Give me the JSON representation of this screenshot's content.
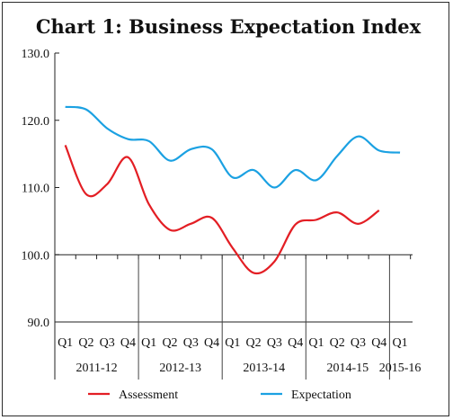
{
  "chart_data": {
    "type": "line",
    "title": "Chart 1: Business Expectation Index",
    "xlabel": "",
    "ylabel": "",
    "ylim": [
      90,
      130
    ],
    "yticks": [
      "130.0",
      "120.0",
      "110.0",
      "100.0",
      "90.0"
    ],
    "ytick_values": [
      130,
      120,
      110,
      100,
      90
    ],
    "grid": false,
    "legend_position": "bottom",
    "categories": [
      "Q1",
      "Q2",
      "Q3",
      "Q4",
      "Q1",
      "Q2",
      "Q3",
      "Q4",
      "Q1",
      "Q2",
      "Q3",
      "Q4",
      "Q1",
      "Q2",
      "Q3",
      "Q4",
      "Q1"
    ],
    "year_groups": [
      {
        "label": "2011-12",
        "count": 4
      },
      {
        "label": "2012-13",
        "count": 4
      },
      {
        "label": "2013-14",
        "count": 4
      },
      {
        "label": "2014-15",
        "count": 4
      },
      {
        "label": "2015-16",
        "count": 1
      }
    ],
    "series": [
      {
        "name": "Assessment",
        "color": "#e31e24",
        "values": [
          116.3,
          109.0,
          110.5,
          114.5,
          107.5,
          103.7,
          104.6,
          105.5,
          101.0,
          97.3,
          99.0,
          104.5,
          105.2,
          106.3,
          104.6,
          106.6,
          null
        ]
      },
      {
        "name": "Expectation",
        "color": "#1ba1e2",
        "values": [
          122.0,
          121.6,
          118.8,
          117.2,
          116.9,
          114.0,
          115.7,
          115.7,
          111.5,
          112.6,
          110.0,
          112.6,
          111.1,
          114.7,
          117.6,
          115.5,
          115.2
        ]
      }
    ]
  }
}
